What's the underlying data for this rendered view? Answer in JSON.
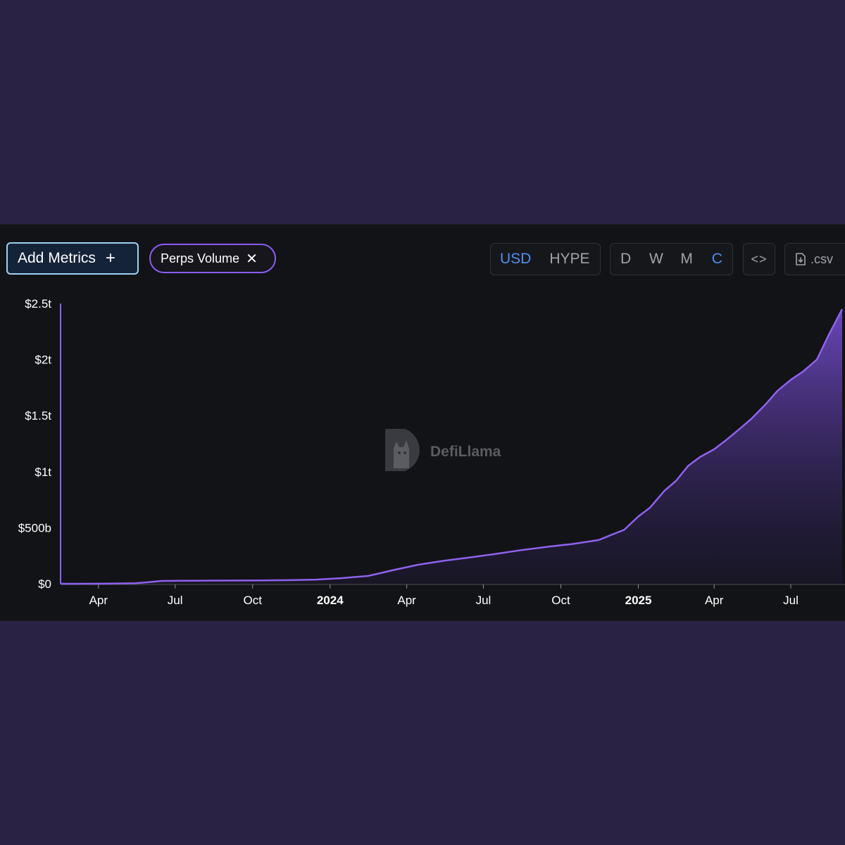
{
  "toolbar": {
    "add_metrics_label": "Add Metrics",
    "add_icon": "plus-icon",
    "metric_chip_label": "Perps Volume",
    "remove_icon": "close-icon",
    "currency_options": [
      "USD",
      "HYPE"
    ],
    "currency_selected": "USD",
    "period_options": [
      "D",
      "W",
      "M",
      "C"
    ],
    "period_selected": "C",
    "embed_label": "<>",
    "embed_icon": "code-icon",
    "csv_label": ".csv",
    "csv_icon": "file-download-icon"
  },
  "watermark": {
    "text": "DefiLlama",
    "icon": "llama-logo-icon"
  },
  "colors": {
    "accent": "#8b5cf6",
    "active": "#4f8ff2",
    "page_bg": "#292245",
    "panel_bg": "#121316"
  },
  "chart_data": {
    "type": "area",
    "series": [
      {
        "x": [
          "2023-02-15",
          "2023-03-15",
          "2023-04-15",
          "2023-05-15",
          "2023-06-01",
          "2023-06-15",
          "2023-07-15",
          "2023-08-15",
          "2023-09-15",
          "2023-10-15",
          "2023-11-15",
          "2023-12-15",
          "2024-01-15",
          "2024-02-15",
          "2024-03-01",
          "2024-03-15",
          "2024-04-15",
          "2024-05-15",
          "2024-06-15",
          "2024-07-15",
          "2024-08-15",
          "2024-09-15",
          "2024-10-15",
          "2024-11-15",
          "2024-12-01",
          "2024-12-15",
          "2025-01-01",
          "2025-01-15",
          "2025-02-01",
          "2025-02-15",
          "2025-03-01",
          "2025-03-15",
          "2025-04-01",
          "2025-04-15",
          "2025-05-01",
          "2025-05-15",
          "2025-06-01",
          "2025-06-15",
          "2025-07-01",
          "2025-07-15",
          "2025-08-01",
          "2025-08-15",
          "2025-08-31"
        ],
        "values": [
          0,
          0,
          2,
          5,
          15,
          25,
          27,
          28,
          29,
          30,
          32,
          37,
          50,
          70,
          95,
          120,
          170,
          205,
          235,
          265,
          300,
          330,
          355,
          390,
          440,
          480,
          600,
          680,
          830,
          920,
          1050,
          1130,
          1200,
          1280,
          1380,
          1470,
          1600,
          1720,
          1820,
          1890,
          2000,
          2220,
          2450
        ]
      }
    ],
    "y_ticks": [
      "$0",
      "$500b",
      "$1t",
      "$1.5t",
      "$2t",
      "$2.5t"
    ],
    "y_tick_values": [
      0,
      500,
      1000,
      1500,
      2000,
      2500
    ],
    "y_unit": "billion USD",
    "ylim": [
      0,
      2500
    ],
    "x_ticks": [
      {
        "label": "Apr",
        "date": "2023-04-01",
        "year": false
      },
      {
        "label": "Jul",
        "date": "2023-07-01",
        "year": false
      },
      {
        "label": "Oct",
        "date": "2023-10-01",
        "year": false
      },
      {
        "label": "2024",
        "date": "2024-01-01",
        "year": true
      },
      {
        "label": "Apr",
        "date": "2024-04-01",
        "year": false
      },
      {
        "label": "Jul",
        "date": "2024-07-01",
        "year": false
      },
      {
        "label": "Oct",
        "date": "2024-10-01",
        "year": false
      },
      {
        "label": "2025",
        "date": "2025-01-01",
        "year": true
      },
      {
        "label": "Apr",
        "date": "2025-04-01",
        "year": false
      },
      {
        "label": "Jul",
        "date": "2025-07-01",
        "year": false
      }
    ],
    "xlim": [
      "2023-02-15",
      "2025-08-31"
    ],
    "grid": false,
    "legend": false
  }
}
